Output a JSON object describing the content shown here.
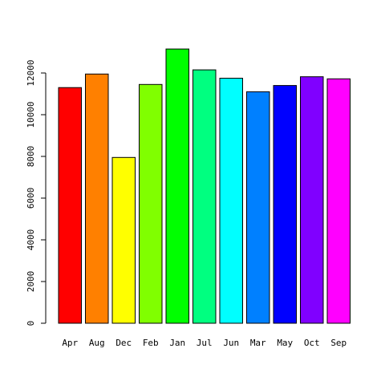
{
  "chart_data": {
    "type": "bar",
    "title": "",
    "xlabel": "",
    "ylabel": "",
    "categories": [
      "Apr",
      "Aug",
      "Dec",
      "Feb",
      "Jan",
      "Jul",
      "Jun",
      "Mar",
      "May",
      "Oct",
      "Sep"
    ],
    "values": [
      11300,
      11950,
      7950,
      11450,
      13150,
      12150,
      11750,
      11100,
      11400,
      11820,
      11720
    ],
    "colors": [
      "#FF0000",
      "#FF8000",
      "#FFFF00",
      "#80FF00",
      "#00FF00",
      "#00FF80",
      "#00FFFF",
      "#0080FF",
      "#0000FF",
      "#8000FF",
      "#FF00FF"
    ],
    "yticks": [
      0,
      2000,
      4000,
      6000,
      8000,
      10000,
      12000
    ],
    "ytick_labels": [
      "0",
      "2000",
      "4000",
      "6000",
      "8000",
      "10000",
      "12000"
    ],
    "ylim": [
      0,
      13150
    ],
    "grid": false,
    "legend": "none"
  }
}
